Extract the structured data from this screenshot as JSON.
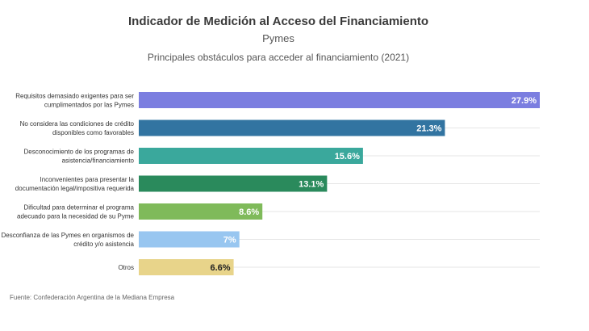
{
  "header": {
    "title": "Indicador de Medición al Acceso del Financiamiento",
    "subtitle": "Pymes",
    "description": "Principales obstáculos para acceder al financiamiento (2021)"
  },
  "footer": {
    "source": "Fuente: Confederación Argentina de la Mediana Empresa"
  },
  "chart_data": {
    "type": "bar",
    "orientation": "horizontal",
    "title": "Indicador de Medición al Acceso del Financiamiento",
    "subtitle": "Principales obstáculos para acceder al financiamiento (2021)",
    "xlabel": "",
    "ylabel": "",
    "xlim": [
      0,
      27.9
    ],
    "grid": true,
    "unit": "%",
    "categories": [
      [
        "Requisitos demasiado exigentes para ser",
        "cumplimentados por las Pymes"
      ],
      [
        "No considera las condiciones de crédito",
        "disponibles como favorables"
      ],
      [
        "Desconocimiento de los programas de",
        "asistencia/financiamiento"
      ],
      [
        "Inconvenientes para presentar la",
        "documentación legal/impositiva requerida"
      ],
      [
        "Dificultad para determinar el programa",
        "adecuado para la necesidad de su Pyme"
      ],
      [
        "Desconfianza de las Pymes en organismos de",
        "crédito y/o asistencia"
      ],
      [
        "Otros"
      ]
    ],
    "values": [
      27.9,
      21.3,
      15.6,
      13.1,
      8.6,
      7,
      6.6
    ],
    "value_labels": [
      "27.9%",
      "21.3%",
      "15.6%",
      "13.1%",
      "8.6%",
      "7%",
      "6.6%"
    ],
    "colors": [
      "#7b7ee0",
      "#3274a1",
      "#3aa89c",
      "#2a8a5c",
      "#7fba5a",
      "#98c6f0",
      "#e8d48a"
    ],
    "label_colors": [
      "#ffffff",
      "#ffffff",
      "#ffffff",
      "#ffffff",
      "#ffffff",
      "#ffffff",
      "#222222"
    ]
  }
}
